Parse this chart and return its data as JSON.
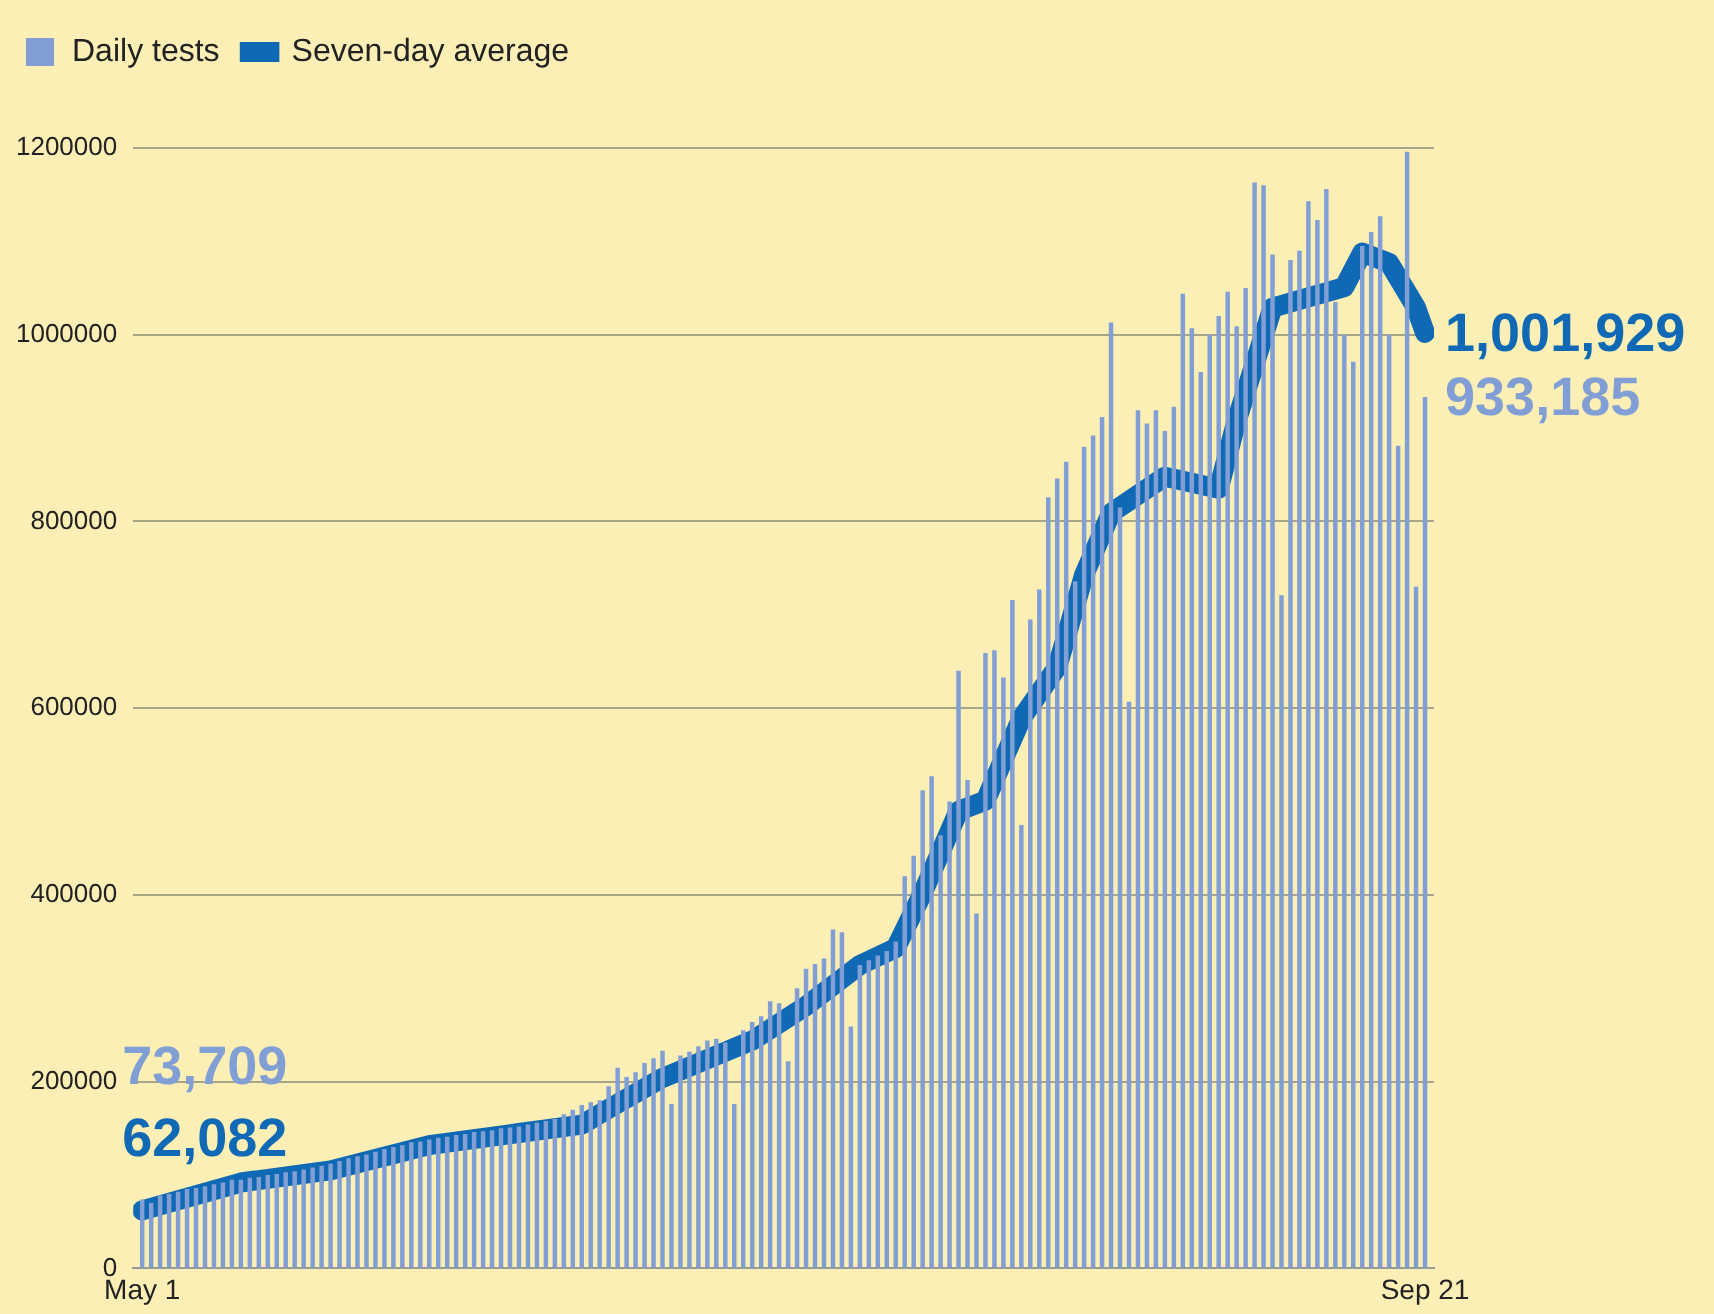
{
  "chart_data": {
    "type": "bar",
    "x": [
      "--05-01",
      "--05-02",
      "--05-03",
      "--05-04",
      "--05-05",
      "--05-06",
      "--05-07",
      "--05-08",
      "--05-09",
      "--05-10",
      "--05-11",
      "--05-12",
      "--05-13",
      "--05-14",
      "--05-15",
      "--05-16",
      "--05-17",
      "--05-18",
      "--05-19",
      "--05-20",
      "--05-21",
      "--05-22",
      "--05-23",
      "--05-24",
      "--05-25",
      "--05-26",
      "--05-27",
      "--05-28",
      "--05-29",
      "--05-30",
      "--05-31",
      "--06-01",
      "--06-02",
      "--06-03",
      "--06-04",
      "--06-05",
      "--06-06",
      "--06-07",
      "--06-08",
      "--06-09",
      "--06-10",
      "--06-11",
      "--06-12",
      "--06-13",
      "--06-14",
      "--06-15",
      "--06-16",
      "--06-17",
      "--06-18",
      "--06-19",
      "--06-20",
      "--06-21",
      "--06-22",
      "--06-23",
      "--06-24",
      "--06-25",
      "--06-26",
      "--06-27",
      "--06-28",
      "--06-29",
      "--06-30",
      "--07-01",
      "--07-02",
      "--07-03",
      "--07-04",
      "--07-05",
      "--07-06",
      "--07-07",
      "--07-08",
      "--07-09",
      "--07-10",
      "--07-11",
      "--07-12",
      "--07-13",
      "--07-14",
      "--07-15",
      "--07-16",
      "--07-17",
      "--07-18",
      "--07-19",
      "--07-20",
      "--07-21",
      "--07-22",
      "--07-23",
      "--07-24",
      "--07-25",
      "--07-26",
      "--07-27",
      "--07-28",
      "--07-29",
      "--07-30",
      "--07-31",
      "--08-01",
      "--08-02",
      "--08-03",
      "--08-04",
      "--08-05",
      "--08-06",
      "--08-07",
      "--08-08",
      "--08-09",
      "--08-10",
      "--08-11",
      "--08-12",
      "--08-13",
      "--08-14",
      "--08-15",
      "--08-16",
      "--08-17",
      "--08-18",
      "--08-19",
      "--08-20",
      "--08-21",
      "--08-22",
      "--08-23",
      "--08-24",
      "--08-25",
      "--08-26",
      "--08-27",
      "--08-28",
      "--08-29",
      "--08-30",
      "--08-31",
      "--09-01",
      "--09-02",
      "--09-03",
      "--09-04",
      "--09-05",
      "--09-06",
      "--09-07",
      "--09-08",
      "--09-09",
      "--09-10",
      "--09-11",
      "--09-12",
      "--09-13",
      "--09-14",
      "--09-15",
      "--09-16",
      "--09-17",
      "--09-18",
      "--09-19",
      "--09-20",
      "--09-21"
    ],
    "xlim": [
      "--04-30",
      "--09-22"
    ],
    "xticks": [
      {
        "value": "--05-01",
        "label": "May 1"
      },
      {
        "value": "--09-21",
        "label": "Sep 21"
      }
    ],
    "ylim": [
      0,
      1200000
    ],
    "yticks": [
      0,
      200000,
      400000,
      600000,
      800000,
      1000000,
      1200000
    ],
    "grid": "y",
    "annotations": [
      {
        "text": "73,709",
        "x": "--05-01",
        "y": 73709
      },
      {
        "text": "62,082",
        "x": "--05-01",
        "y": 62082
      },
      {
        "text": "1,001,929",
        "x": "--09-21",
        "y": 1001929
      },
      {
        "text": "933,185",
        "x": "--09-21",
        "y": 933185
      }
    ],
    "legend": "top left",
    "marker": "none",
    "line_style": "solid",
    "series": [
      {
        "name": "Daily tests",
        "color": "#819fd4",
        "values": [
          73709,
          70000,
          78000,
          80000,
          82000,
          85000,
          86000,
          88000,
          90000,
          92000,
          95000,
          95000,
          97000,
          98000,
          100000,
          101000,
          103000,
          104000,
          106000,
          108000,
          110000,
          112000,
          115000,
          118000,
          120000,
          122000,
          125000,
          128000,
          130000,
          132000,
          135000,
          136000,
          138000,
          140000,
          141000,
          143000,
          144000,
          146000,
          147000,
          148000,
          150000,
          151000,
          152000,
          154000,
          156000,
          158000,
          160000,
          165000,
          170000,
          175000,
          178000,
          180000,
          195000,
          215000,
          205000,
          210000,
          220000,
          225000,
          233000,
          176000,
          228000,
          232000,
          238000,
          244000,
          246000,
          242000,
          176000,
          255000,
          264000,
          270000,
          286000,
          284000,
          222000,
          300000,
          321000,
          326000,
          332000,
          363000,
          360000,
          259000,
          325000,
          330000,
          335000,
          340000,
          350000,
          420000,
          442000,
          512000,
          527000,
          464000,
          500000,
          640000,
          523000,
          380000,
          659000,
          662000,
          633000,
          716000,
          475000,
          695000,
          727000,
          826000,
          846000,
          864000,
          736000,
          880000,
          892000,
          912000,
          1013000,
          815000,
          607000,
          919000,
          905000,
          919000,
          897000,
          923000,
          1044000,
          1007000,
          960000,
          1000000,
          1020000,
          1046000,
          1009000,
          1050000,
          1163000,
          1160000,
          1086000,
          721000,
          1080000,
          1090000,
          1143000,
          1123000,
          1156000,
          1035000,
          1000000,
          971000,
          1095000,
          1110000,
          1127000,
          1000000,
          881000,
          1196000,
          730000,
          933185
        ]
      },
      {
        "name": "Seven-day average",
        "type": "line",
        "color": "#0f69b4",
        "x": [
          "--05-01",
          "--05-12",
          "--05-22",
          "--06-02",
          "--06-12",
          "--06-19",
          "--06-22",
          "--06-28",
          "--07-02",
          "--07-08",
          "--07-14",
          "--07-20",
          "--07-24",
          "--07-27",
          "--07-31",
          "--08-03",
          "--08-07",
          "--08-11",
          "--08-14",
          "--08-17",
          "--08-23",
          "--08-29",
          "--08-31",
          "--09-04",
          "--09-08",
          "--09-12",
          "--09-14",
          "--09-17",
          "--09-20",
          "--09-21"
        ],
        "values": [
          62082,
          92000,
          105000,
          132000,
          145000,
          154000,
          171000,
          204000,
          220000,
          244000,
          281000,
          325000,
          343000,
          402000,
          490000,
          501000,
          589000,
          644000,
          743000,
          809000,
          848000,
          835000,
          908000,
          1029000,
          1040000,
          1051000,
          1088000,
          1077000,
          1029000,
          1001929
        ]
      }
    ]
  }
}
